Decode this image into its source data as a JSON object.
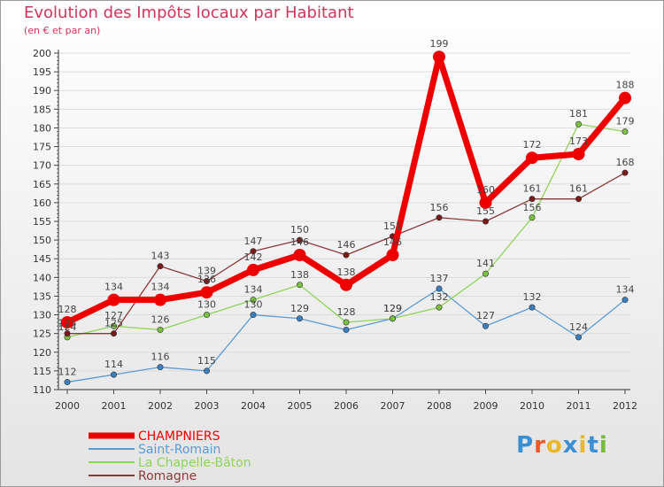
{
  "header": {
    "title": "Evolution des Impôts locaux par Habitant",
    "subtitle": "(en € et par an)"
  },
  "logo": {
    "text": "Proxiti",
    "colors": [
      "#3b8fd3",
      "#e85a2a",
      "#e8b82a",
      "#3b8fd3",
      "#e8b82a",
      "#3b8fd3",
      "#7ab83a"
    ]
  },
  "chart_data": {
    "type": "line",
    "title": "Evolution des Impôts locaux par Habitant",
    "subtitle": "(en € et par an)",
    "xlabel": "",
    "ylabel": "",
    "x": [
      "2000",
      "2001",
      "2002",
      "2003",
      "2004",
      "2005",
      "2006",
      "2007",
      "2008",
      "2009",
      "2010",
      "2011",
      "2012"
    ],
    "ylim": [
      110,
      200
    ],
    "yticks": [
      110,
      115,
      120,
      125,
      130,
      135,
      140,
      145,
      150,
      155,
      160,
      165,
      170,
      175,
      180,
      185,
      190,
      195,
      200
    ],
    "legend_position": "bottom-left",
    "series": [
      {
        "name": "Saint-Romain",
        "color": "#5b9bd5",
        "marker": "#3c7fc0",
        "values": [
          112,
          114,
          116,
          115,
          130,
          129,
          126,
          129,
          137,
          127,
          132,
          124,
          134
        ],
        "labels": [
          "112",
          "114",
          "116",
          "115",
          "130",
          "129",
          "",
          "129",
          "137",
          "127",
          "132",
          "124",
          "134"
        ],
        "label_pos": [
          "above",
          "above",
          "above",
          "above",
          "above",
          "above",
          "none",
          "above",
          "above",
          "above",
          "above",
          "above",
          "above"
        ]
      },
      {
        "name": "La Chapelle-Bâton",
        "color": "#8fd45a",
        "marker": "#7ac142",
        "values": [
          124,
          127,
          126,
          130,
          134,
          138,
          128,
          129,
          132,
          141,
          156,
          181,
          179
        ],
        "labels": [
          "124",
          "127",
          "126",
          "130",
          "134",
          "138",
          "128",
          "129",
          "132",
          "141",
          "156",
          "181",
          "179"
        ],
        "label_pos": [
          "above",
          "above",
          "above",
          "above",
          "above",
          "above",
          "above",
          "above",
          "above",
          "above",
          "above",
          "above",
          "above"
        ]
      },
      {
        "name": "Romagne",
        "color": "#8b3a3a",
        "marker": "#7a1a1a",
        "values": [
          125,
          125,
          143,
          139,
          147,
          150,
          146,
          151,
          156,
          155,
          161,
          161,
          168
        ],
        "labels": [
          "125",
          "125",
          "143",
          "139",
          "147",
          "150",
          "146",
          "151",
          "156",
          "155",
          "161",
          "161",
          "168"
        ],
        "label_pos": [
          "above",
          "above",
          "above",
          "above",
          "above",
          "above",
          "above",
          "above",
          "above",
          "above",
          "above",
          "above",
          "above"
        ]
      },
      {
        "name": "CHAMPNIERS",
        "color": "#ee0000",
        "marker": "#ee0000",
        "values": [
          128,
          134,
          134,
          136,
          142,
          146,
          138,
          146,
          199,
          160,
          172,
          173,
          188
        ],
        "labels": [
          "128",
          "134",
          "134",
          "136",
          "142",
          "146",
          "138",
          "146",
          "199",
          "160",
          "172",
          "173",
          "188"
        ],
        "label_pos": [
          "above",
          "above",
          "above",
          "above",
          "above",
          "above",
          "above",
          "above",
          "above",
          "above",
          "above",
          "above",
          "above"
        ]
      }
    ]
  },
  "legend": [
    {
      "label": "CHAMPNIERS",
      "color": "#ee0000",
      "thick": true
    },
    {
      "label": "Saint-Romain",
      "color": "#5b9bd5",
      "thick": false
    },
    {
      "label": "La Chapelle-Bâton",
      "color": "#8fd45a",
      "thick": false
    },
    {
      "label": "Romagne",
      "color": "#8b3a3a",
      "thick": false
    }
  ]
}
